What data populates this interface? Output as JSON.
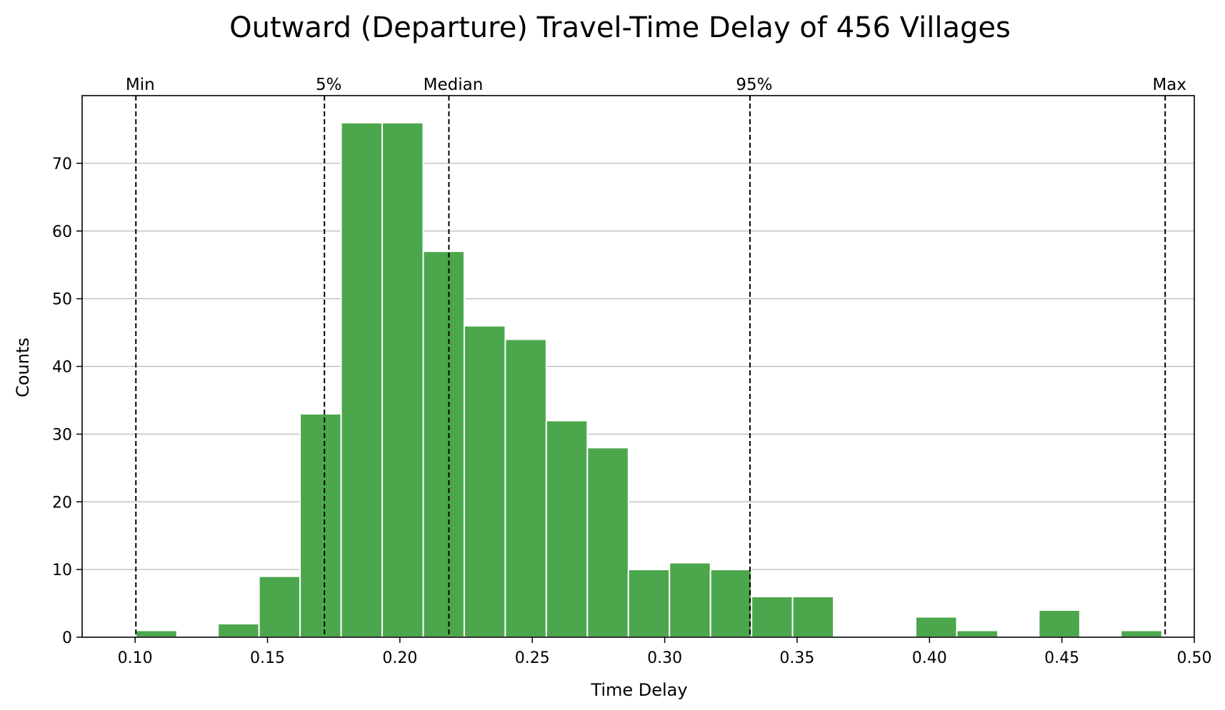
{
  "chart_data": {
    "type": "bar",
    "title": "Outward (Departure) Travel-Time Delay of 456 Villages",
    "xlabel": "Time Delay",
    "ylabel": "Counts",
    "xlim": [
      0.08,
      0.5
    ],
    "ylim": [
      0,
      80
    ],
    "xticks": [
      0.1,
      0.15,
      0.2,
      0.25,
      0.3,
      0.35,
      0.4,
      0.45,
      0.5
    ],
    "xtick_labels": [
      "0.10",
      "0.15",
      "0.20",
      "0.25",
      "0.30",
      "0.35",
      "0.40",
      "0.45",
      "0.50"
    ],
    "yticks": [
      0,
      10,
      20,
      30,
      40,
      50,
      60,
      70
    ],
    "ytick_labels": [
      "0",
      "10",
      "20",
      "30",
      "40",
      "50",
      "60",
      "70"
    ],
    "grid": "y",
    "bar_color": "#4ca64c",
    "bins": [
      {
        "start": 0.1003,
        "end": 0.1158,
        "count": 1
      },
      {
        "start": 0.1313,
        "end": 0.1468,
        "count": 2
      },
      {
        "start": 0.1468,
        "end": 0.1623,
        "count": 9
      },
      {
        "start": 0.1623,
        "end": 0.1778,
        "count": 33
      },
      {
        "start": 0.1778,
        "end": 0.1933,
        "count": 76
      },
      {
        "start": 0.1933,
        "end": 0.2088,
        "count": 76
      },
      {
        "start": 0.2088,
        "end": 0.2243,
        "count": 57
      },
      {
        "start": 0.2243,
        "end": 0.2398,
        "count": 46
      },
      {
        "start": 0.2398,
        "end": 0.2553,
        "count": 44
      },
      {
        "start": 0.2553,
        "end": 0.2708,
        "count": 32
      },
      {
        "start": 0.2708,
        "end": 0.2863,
        "count": 28
      },
      {
        "start": 0.2863,
        "end": 0.3018,
        "count": 10
      },
      {
        "start": 0.3018,
        "end": 0.3173,
        "count": 11
      },
      {
        "start": 0.3173,
        "end": 0.3328,
        "count": 10
      },
      {
        "start": 0.3328,
        "end": 0.3483,
        "count": 6
      },
      {
        "start": 0.3483,
        "end": 0.3638,
        "count": 6
      },
      {
        "start": 0.3948,
        "end": 0.4103,
        "count": 3
      },
      {
        "start": 0.4103,
        "end": 0.4258,
        "count": 1
      },
      {
        "start": 0.4413,
        "end": 0.4568,
        "count": 4
      },
      {
        "start": 0.4723,
        "end": 0.4878,
        "count": 1
      }
    ],
    "markers": [
      {
        "label": "Min",
        "x": 0.1003
      },
      {
        "label": "5%",
        "x": 0.1715
      },
      {
        "label": "Median",
        "x": 0.2185
      },
      {
        "label": "95%",
        "x": 0.3322
      },
      {
        "label": "Max",
        "x": 0.489
      }
    ]
  }
}
